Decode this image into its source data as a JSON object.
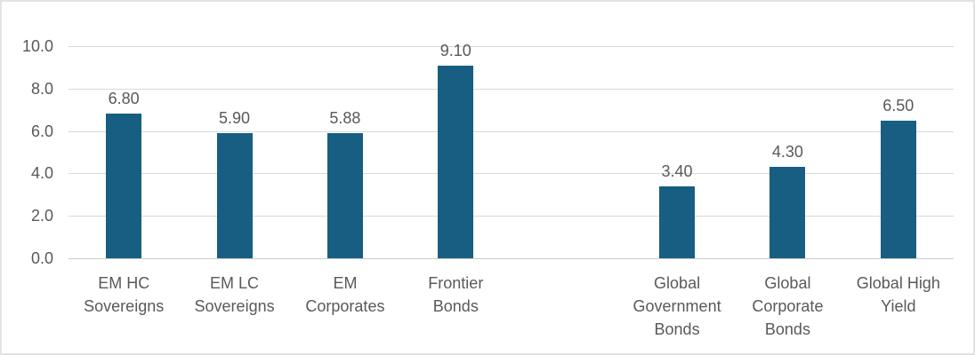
{
  "chart_data": {
    "type": "bar",
    "title": "",
    "xlabel": "",
    "ylabel": "",
    "legend": false,
    "grid": true,
    "ylim": [
      0,
      10
    ],
    "yticks": [
      {
        "value": 0,
        "label": "0.0"
      },
      {
        "value": 2,
        "label": "2.0"
      },
      {
        "value": 4,
        "label": "4.0"
      },
      {
        "value": 6,
        "label": "6.0"
      },
      {
        "value": 8,
        "label": "8.0"
      },
      {
        "value": 10,
        "label": "10.0"
      }
    ],
    "categories": [
      "EM HC Sovereigns",
      "EM LC Sovereigns",
      "EM Corporates",
      "Frontier Bonds",
      "",
      "Global Government Bonds",
      "Global Corporate Bonds",
      "Global High Yield"
    ],
    "category_lines": [
      [
        "EM HC",
        "Sovereigns"
      ],
      [
        "EM LC",
        "Sovereigns"
      ],
      [
        "EM",
        "Corporates"
      ],
      [
        "Frontier",
        "Bonds"
      ],
      [],
      [
        "Global",
        "Government",
        "Bonds"
      ],
      [
        "Global",
        "Corporate",
        "Bonds"
      ],
      [
        "Global High",
        "Yield"
      ]
    ],
    "values": [
      6.8,
      5.9,
      5.88,
      9.1,
      null,
      3.4,
      4.3,
      6.5
    ],
    "value_labels": [
      "6.80",
      "5.90",
      "5.88",
      "9.10",
      null,
      "3.40",
      "4.30",
      "6.50"
    ],
    "colors": {
      "bar": "#175E82",
      "gridline": "#D9D9D9",
      "axis_line": "#C9C9C9",
      "tick_text": "#595959",
      "value_text": "#595959",
      "category_text": "#595959",
      "background": "#FFFFFF",
      "frame_border": "#E3E3E3"
    }
  }
}
